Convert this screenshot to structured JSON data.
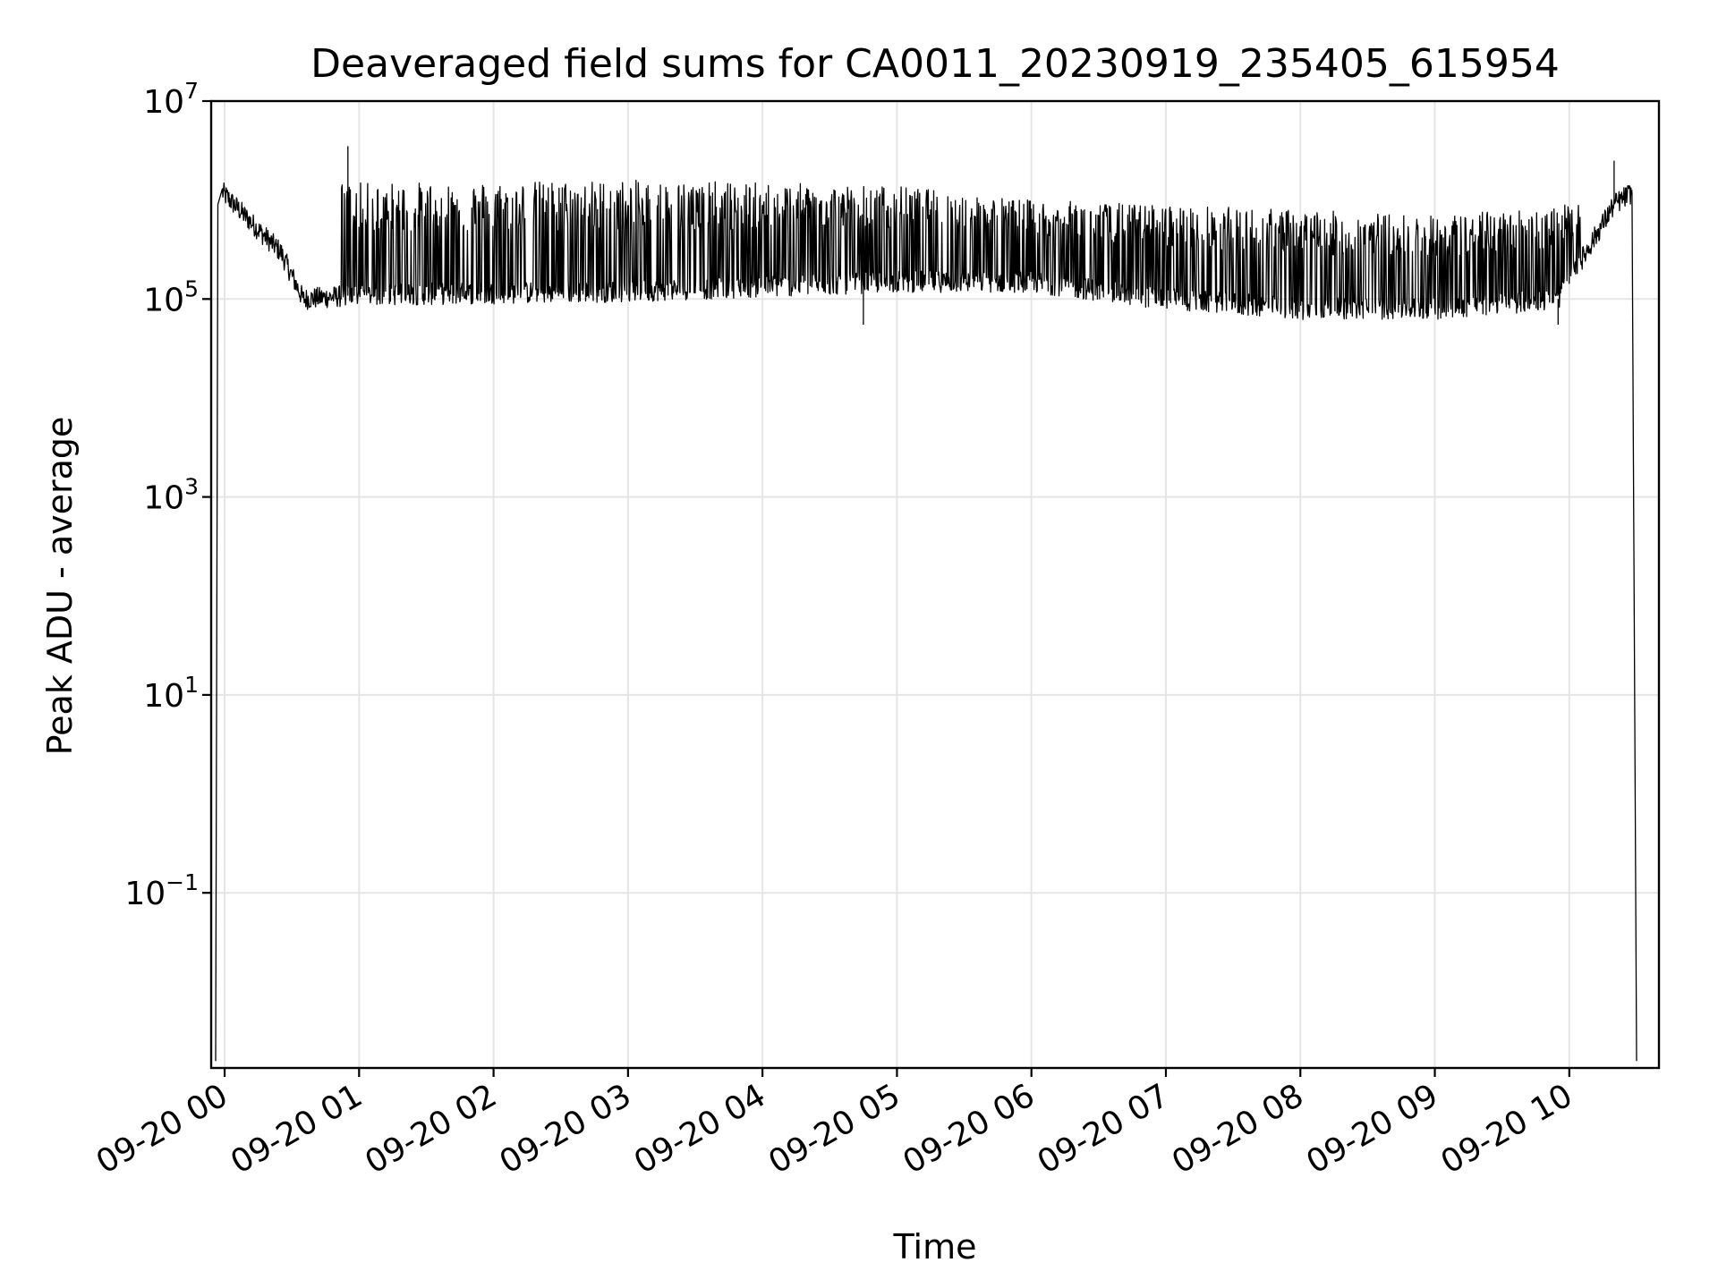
{
  "chart_data": {
    "type": "line",
    "title": "Deaveraged field sums for CA0011_20230919_235405_615954",
    "xlabel": "Time",
    "ylabel": "Peak ADU - average",
    "yscale": "log",
    "ylim": [
      0.0017,
      10000000
    ],
    "grid": true,
    "xlim": [
      "2023-09-19 23:54",
      "2023-09-20 10:40"
    ],
    "x_ticks": [
      "09-20 00",
      "09-20 01",
      "09-20 02",
      "09-20 03",
      "09-20 04",
      "09-20 05",
      "09-20 06",
      "09-20 07",
      "09-20 08",
      "09-20 09",
      "09-20 10"
    ],
    "y_ticks": [
      {
        "base": "10",
        "exp": "7"
      },
      {
        "base": "10",
        "exp": "5"
      },
      {
        "base": "10",
        "exp": "3"
      },
      {
        "base": "10",
        "exp": "1"
      },
      {
        "base": "10",
        "exp": "−1"
      }
    ],
    "series": [
      {
        "color": "#000000",
        "points": [
          {
            "x": "2023-09-19 23:56",
            "y": 0.002
          },
          {
            "x": "2023-09-19 23:57",
            "y": 900000
          },
          {
            "x": "2023-09-19 23:59",
            "y": 1600000
          },
          {
            "x": "2023-09-20 00:05",
            "y": 1200000
          },
          {
            "x": "2023-09-20 00:15",
            "y": 500000
          },
          {
            "x": "2023-09-20 00:25",
            "y": 300000
          },
          {
            "x": "2023-09-20 00:35",
            "y": 100000
          },
          {
            "x": "2023-09-20 00:50",
            "y": 110000
          },
          {
            "x": "2023-09-20 00:55",
            "y": 3500000
          },
          {
            "x": "2023-09-20 01:00",
            "y": 120000
          },
          {
            "x": "2023-09-20 02:00",
            "y": 1500000
          },
          {
            "x": "2023-09-20 03:00",
            "y": 1600000
          },
          {
            "x": "2023-09-20 04:00",
            "y": 1500000
          },
          {
            "x": "2023-09-20 04:45",
            "y": 55000
          },
          {
            "x": "2023-09-20 05:00",
            "y": 1400000
          },
          {
            "x": "2023-09-20 06:00",
            "y": 150000
          },
          {
            "x": "2023-09-20 07:00",
            "y": 100000
          },
          {
            "x": "2023-09-20 08:00",
            "y": 80000
          },
          {
            "x": "2023-09-20 09:00",
            "y": 80000
          },
          {
            "x": "2023-09-20 09:55",
            "y": 55000
          },
          {
            "x": "2023-09-20 10:20",
            "y": 2500000
          },
          {
            "x": "2023-09-20 10:28",
            "y": 1200000
          },
          {
            "x": "2023-09-20 10:30",
            "y": 0.002
          }
        ]
      }
    ]
  }
}
